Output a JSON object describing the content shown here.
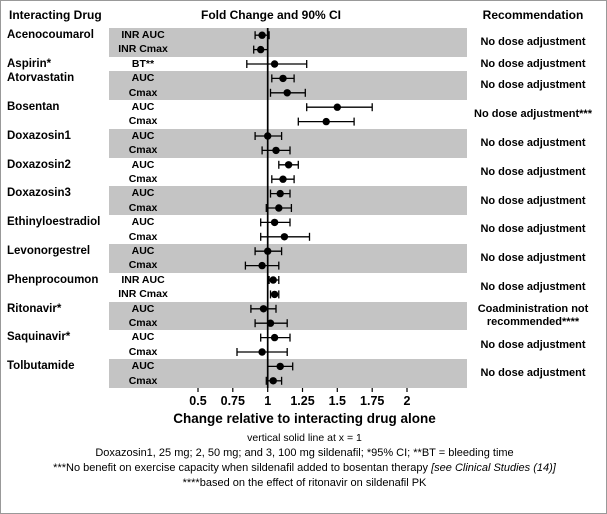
{
  "header": {
    "left": "Interacting Drug",
    "center": "Fold Change and 90% CI",
    "right": "Recommendation"
  },
  "chart_data": {
    "type": "forest",
    "title": "Fold Change and 90% CI",
    "xlabel": "Change relative to interacting drug alone",
    "xlim": [
      0.5,
      2
    ],
    "reference_line": 1,
    "x_ticks": [
      "0.5",
      "0.75",
      "1",
      "1.25",
      "1.5",
      "1.75",
      "2"
    ],
    "rows": [
      {
        "drug": "Acenocoumarol",
        "shaded": true,
        "recommendation": "No dose adjustment",
        "measures": [
          {
            "label": "INR AUC",
            "value": 0.96,
            "lo": 0.91,
            "hi": 1.01
          },
          {
            "label": "INR Cmax",
            "value": 0.95,
            "lo": 0.9,
            "hi": 1.0
          }
        ]
      },
      {
        "drug": "Aspirin*",
        "shaded": false,
        "recommendation": "No dose adjustment",
        "measures": [
          {
            "label": "BT**",
            "value": 1.05,
            "lo": 0.85,
            "hi": 1.28
          }
        ]
      },
      {
        "drug": "Atorvastatin",
        "shaded": true,
        "recommendation": "No dose adjustment",
        "measures": [
          {
            "label": "AUC",
            "value": 1.11,
            "lo": 1.03,
            "hi": 1.19
          },
          {
            "label": "Cmax",
            "value": 1.14,
            "lo": 1.02,
            "hi": 1.27
          }
        ]
      },
      {
        "drug": "Bosentan",
        "shaded": false,
        "recommendation": "No dose adjustment***",
        "measures": [
          {
            "label": "AUC",
            "value": 1.5,
            "lo": 1.28,
            "hi": 1.75
          },
          {
            "label": "Cmax",
            "value": 1.42,
            "lo": 1.22,
            "hi": 1.62
          }
        ]
      },
      {
        "drug": "Doxazosin1",
        "shaded": true,
        "recommendation": "No dose adjustment",
        "measures": [
          {
            "label": "AUC",
            "value": 1.0,
            "lo": 0.91,
            "hi": 1.1
          },
          {
            "label": "Cmax",
            "value": 1.06,
            "lo": 0.96,
            "hi": 1.16
          }
        ]
      },
      {
        "drug": "Doxazosin2",
        "shaded": false,
        "recommendation": "No dose adjustment",
        "measures": [
          {
            "label": "AUC",
            "value": 1.15,
            "lo": 1.08,
            "hi": 1.22
          },
          {
            "label": "Cmax",
            "value": 1.11,
            "lo": 1.03,
            "hi": 1.19
          }
        ]
      },
      {
        "drug": "Doxazosin3",
        "shaded": true,
        "recommendation": "No dose adjustment",
        "measures": [
          {
            "label": "AUC",
            "value": 1.09,
            "lo": 1.02,
            "hi": 1.16
          },
          {
            "label": "Cmax",
            "value": 1.08,
            "lo": 0.99,
            "hi": 1.17
          }
        ]
      },
      {
        "drug": "Ethinyloestradiol",
        "shaded": false,
        "recommendation": "No dose adjustment",
        "measures": [
          {
            "label": "AUC",
            "value": 1.05,
            "lo": 0.95,
            "hi": 1.16
          },
          {
            "label": "Cmax",
            "value": 1.12,
            "lo": 0.95,
            "hi": 1.3
          }
        ]
      },
      {
        "drug": "Levonorgestrel",
        "shaded": true,
        "recommendation": "No dose adjustment",
        "measures": [
          {
            "label": "AUC",
            "value": 1.0,
            "lo": 0.91,
            "hi": 1.1
          },
          {
            "label": "Cmax",
            "value": 0.96,
            "lo": 0.84,
            "hi": 1.08
          }
        ]
      },
      {
        "drug": "Phenprocoumon",
        "shaded": false,
        "recommendation": "No dose adjustment",
        "measures": [
          {
            "label": "INR AUC",
            "value": 1.04,
            "lo": 1.01,
            "hi": 1.08
          },
          {
            "label": "INR Cmax",
            "value": 1.05,
            "lo": 1.02,
            "hi": 1.08
          }
        ]
      },
      {
        "drug": "Ritonavir*",
        "shaded": true,
        "recommendation": "Coadministration not recommended****",
        "measures": [
          {
            "label": "AUC",
            "value": 0.97,
            "lo": 0.88,
            "hi": 1.06
          },
          {
            "label": "Cmax",
            "value": 1.02,
            "lo": 0.91,
            "hi": 1.14
          }
        ]
      },
      {
        "drug": "Saquinavir*",
        "shaded": false,
        "recommendation": "No dose adjustment",
        "measures": [
          {
            "label": "AUC",
            "value": 1.05,
            "lo": 0.95,
            "hi": 1.16
          },
          {
            "label": "Cmax",
            "value": 0.96,
            "lo": 0.78,
            "hi": 1.14
          }
        ]
      },
      {
        "drug": "Tolbutamide",
        "shaded": true,
        "recommendation": "No dose adjustment",
        "measures": [
          {
            "label": "AUC",
            "value": 1.09,
            "lo": 1.0,
            "hi": 1.18
          },
          {
            "label": "Cmax",
            "value": 1.04,
            "lo": 0.99,
            "hi": 1.1
          }
        ]
      }
    ]
  },
  "footnotes": {
    "ref_line_note": "vertical solid line at x = 1",
    "line1": "Doxazosin1, 25 mg; 2, 50 mg; and 3, 100 mg sildenafil; *95% CI; **BT = bleeding time",
    "line2_text": "***No benefit on exercise capacity when sildenafil added to bosentan therapy ",
    "line2_italic": "[see Clinical Studies (14)]",
    "line3": "****based on the effect of ritonavir on sildenafil PK"
  }
}
